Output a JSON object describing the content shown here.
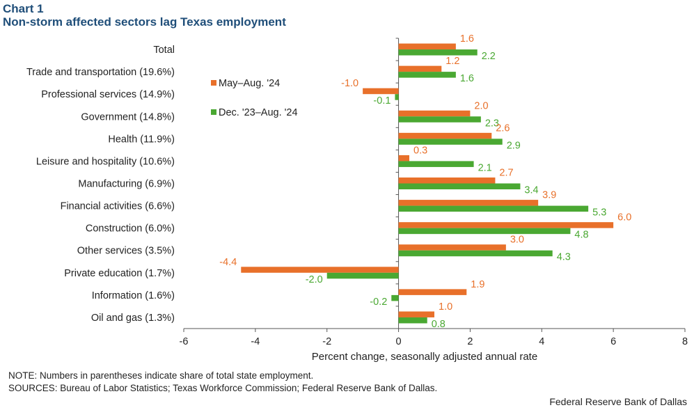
{
  "header": {
    "label": "Chart 1",
    "title": "Non-storm affected sectors lag Texas employment"
  },
  "chart_data": {
    "type": "bar",
    "orientation": "horizontal",
    "categories": [
      "Total",
      "Trade and transportation (19.6%)",
      "Professional services (14.9%)",
      "Government (14.8%)",
      "Health (11.9%)",
      "Leisure and hospitality (10.6%)",
      "Manufacturing (6.9%)",
      "Financial activities (6.6%)",
      "Construction (6.0%)",
      "Other services (3.5%)",
      "Private education (1.7%)",
      "Information (1.6%)",
      "Oil and gas (1.3%)"
    ],
    "series": [
      {
        "name": "May–Aug. '24",
        "color": "#e8702a",
        "values": [
          1.6,
          1.2,
          -1.0,
          2.0,
          2.6,
          0.3,
          2.7,
          3.9,
          6.0,
          3.0,
          -4.4,
          1.9,
          1.0
        ],
        "labels": [
          "1.6",
          "1.2",
          "-1.0",
          "2.0",
          "2.6",
          "0.3",
          "2.7",
          "3.9",
          "6.0",
          "3.0",
          "-4.4",
          "1.9",
          "1.0"
        ]
      },
      {
        "name": "Dec. '23–Aug. '24",
        "color": "#4aa832",
        "values": [
          2.2,
          1.6,
          -0.1,
          2.3,
          2.9,
          2.1,
          3.4,
          5.3,
          4.8,
          4.3,
          -2.0,
          -0.2,
          0.8
        ],
        "labels": [
          "2.2",
          "1.6",
          "-0.1",
          "2.3",
          "2.9",
          "2.1",
          "3.4",
          "5.3",
          "4.8",
          "4.3",
          "-2.0",
          "-0.2",
          "0.8"
        ]
      }
    ],
    "xlim": [
      -6,
      8
    ],
    "xticks": [
      "-6",
      "-4",
      "-2",
      "0",
      "2",
      "4",
      "6",
      "8"
    ],
    "xlabel": "Percent change, seasonally adjusted annual rate",
    "ylabel": "",
    "grid": false,
    "legend_position": "upper-left"
  },
  "footnotes": {
    "note": "NOTE: Numbers in parentheses indicate share of total state employment.",
    "sources": "SOURCES: Bureau of Labor Statistics; Texas Workforce Commission; Federal Reserve Bank of Dallas."
  },
  "footer": {
    "credit": "Federal Reserve Bank of Dallas"
  }
}
